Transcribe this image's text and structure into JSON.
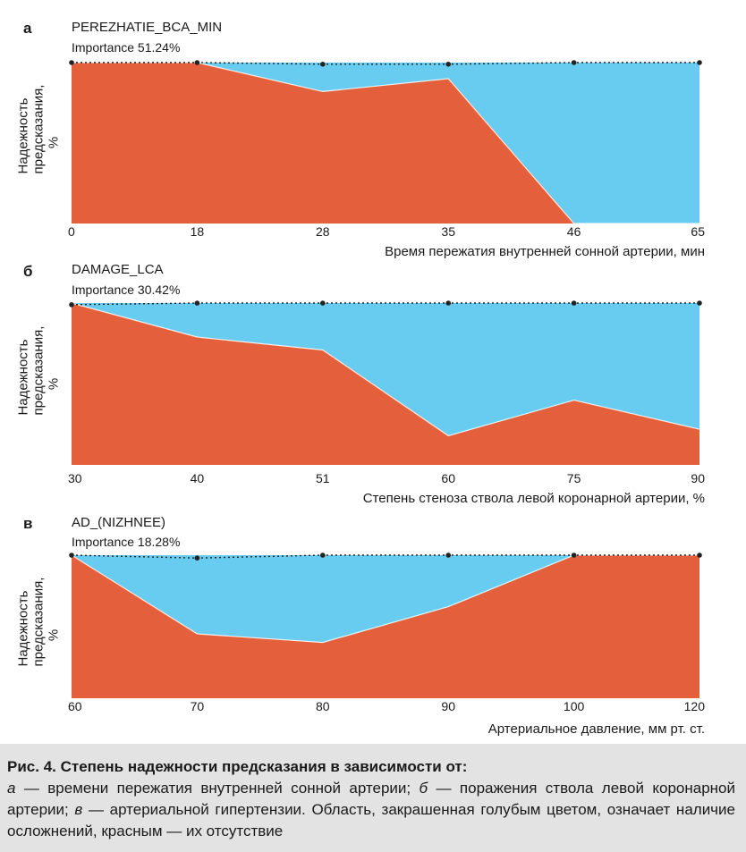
{
  "colors": {
    "red": "#e4603c",
    "blue": "#68ccf0",
    "dots": "#222222"
  },
  "chart_data": [
    {
      "type": "area",
      "letter": "а",
      "title": "PEREZHATIE_BCA_MIN",
      "importance": "Importance 51.24%",
      "ylabel": [
        "Надежность",
        "предсказания, %"
      ],
      "xlabel": "Время пережатия внутренней сонной артерии, мин",
      "categories": [
        "0",
        "18",
        "28",
        "35",
        "46",
        "65"
      ],
      "series": [
        {
          "values": [
            100,
            100,
            82,
            90,
            0,
            0
          ]
        }
      ],
      "dotted_line": [
        100,
        100,
        99,
        99,
        100,
        100
      ],
      "ylim": [
        0,
        100
      ]
    },
    {
      "type": "area",
      "letter": "б",
      "title": "DAMAGE_LCA",
      "importance": "Importance 30.42%",
      "ylabel": [
        "Надежность",
        "предсказания, %"
      ],
      "xlabel": "Степень стеноза ствола левой коронарной артерии, %",
      "categories": [
        "30",
        "40",
        "51",
        "60",
        "75",
        "90"
      ],
      "series": [
        {
          "values": [
            100,
            79,
            71,
            18,
            40,
            22
          ]
        }
      ],
      "dotted_line": [
        99,
        100,
        100,
        100,
        100,
        100
      ],
      "ylim": [
        0,
        100
      ]
    },
    {
      "type": "area",
      "letter": "в",
      "title": "AD_(NIZHNEE)",
      "importance": "Importance 18.28%",
      "ylabel": [
        "Надежность",
        "предсказания, %"
      ],
      "xlabel": "Артериальное давление, мм рт. ст.",
      "categories": [
        "60",
        "70",
        "80",
        "90",
        "100",
        "120"
      ],
      "series": [
        {
          "values": [
            100,
            45,
            39,
            64,
            100,
            100
          ]
        }
      ],
      "dotted_line": [
        100,
        98,
        100,
        100,
        100,
        100
      ],
      "ylim": [
        0,
        100
      ]
    }
  ],
  "caption": {
    "title": "Рис. 4. Степень надежности предсказания в зависимости от:",
    "a_letter": "а",
    "a_text": " — времени пережатия внутренней сонной артерии; ",
    "b_letter": "б",
    "b_text": " — поражения ствола левой коронарной артерии; ",
    "v_letter": "в",
    "v_text": " — артериальной гипертензии. Область, закрашенная голубым цветом, означает наличие осложнений, красным — их отсутствие"
  }
}
